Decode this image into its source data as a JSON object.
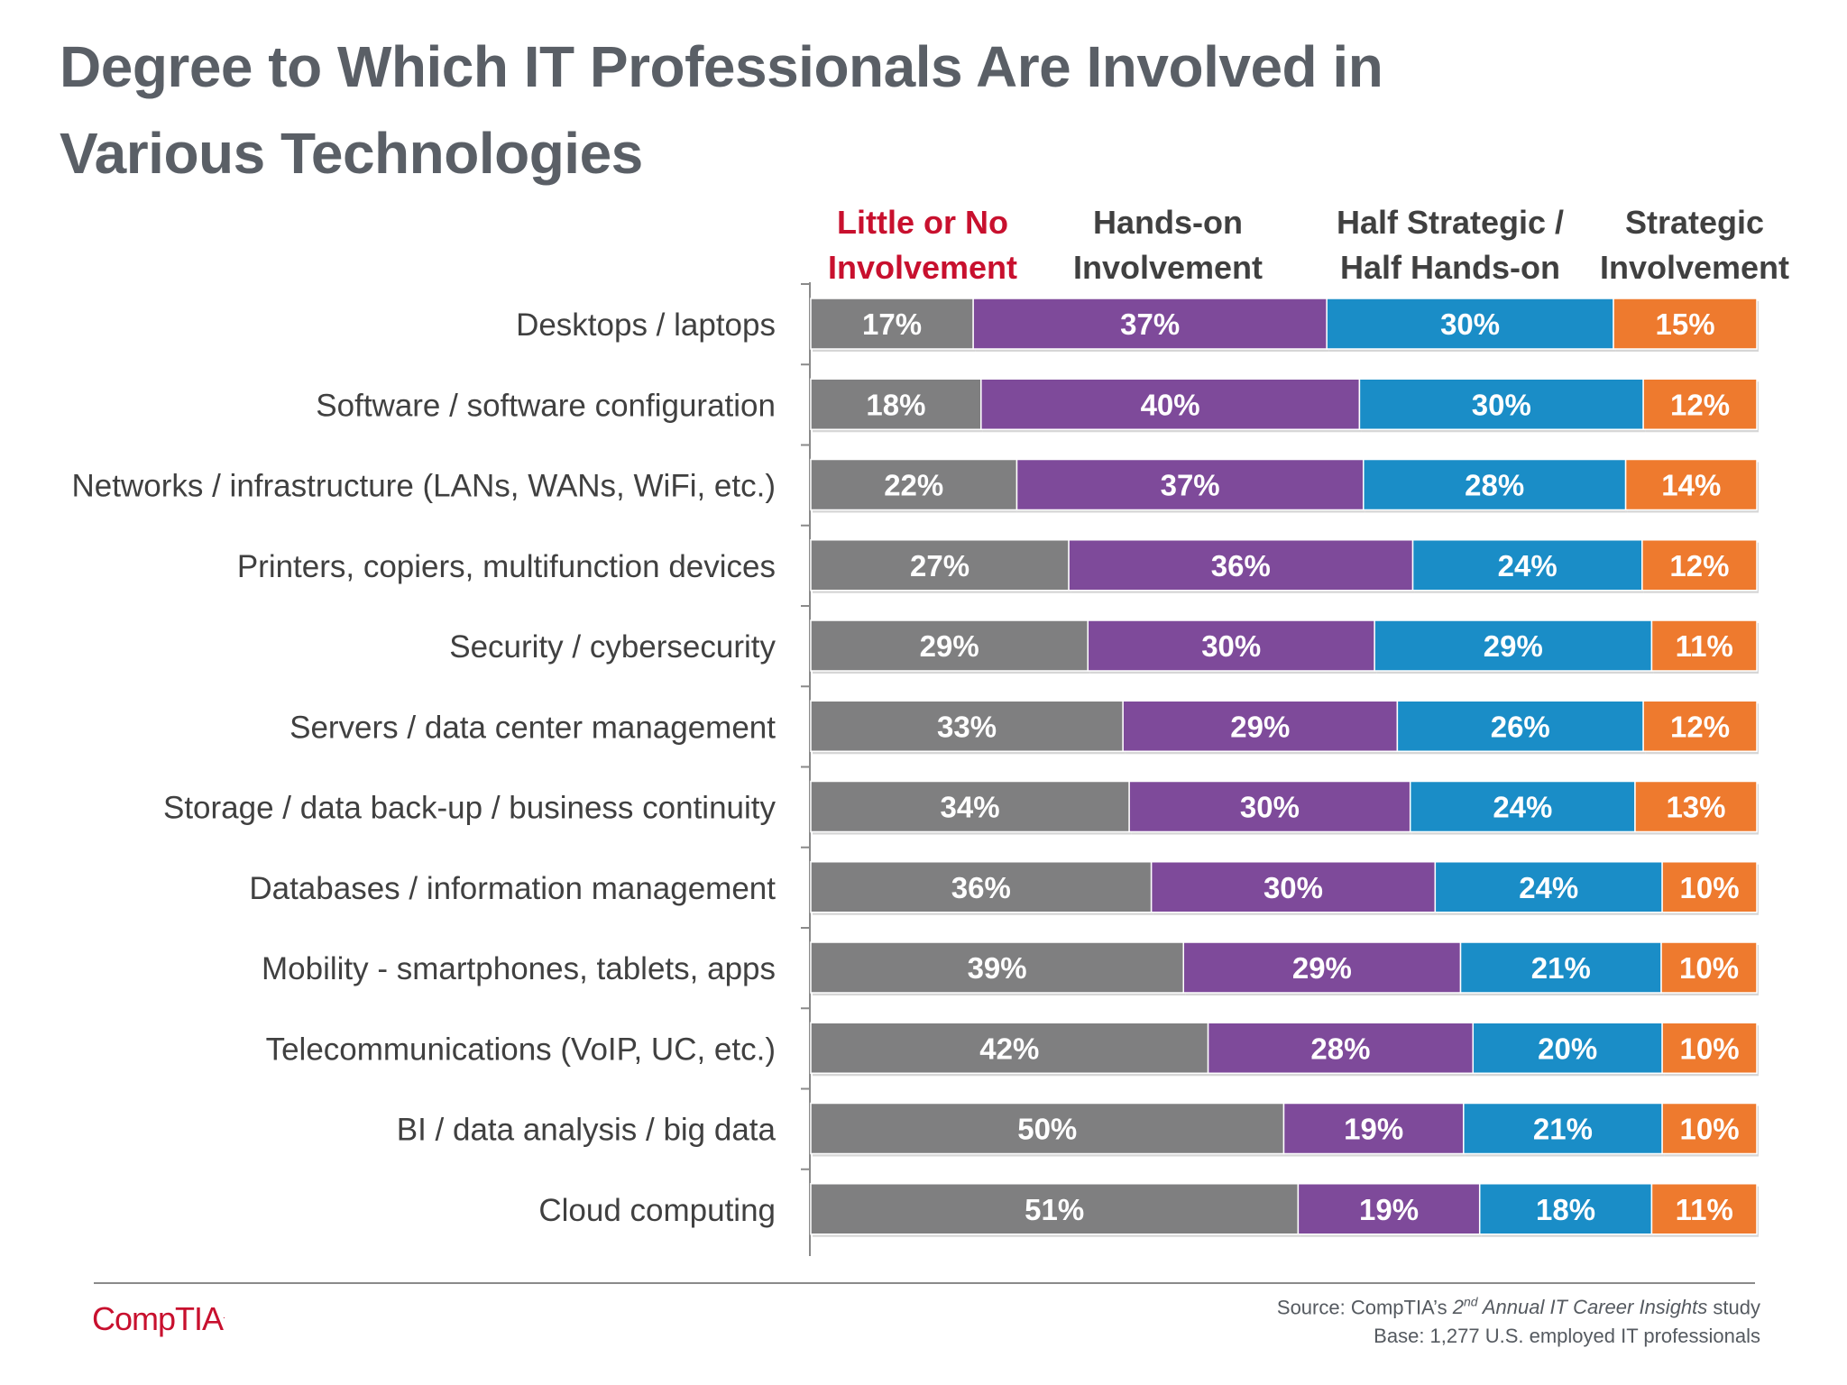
{
  "title_line1": "Degree to Which IT Professionals Are Involved in",
  "title_line2": "Various Technologies",
  "legend": {
    "s1_line1": "Little or No",
    "s1_line2": "Involvement",
    "s2_line1": "Hands-on",
    "s2_line2": "Involvement",
    "s3_line1": "Half Strategic /",
    "s3_line2": "Half Hands-on",
    "s4_line1": "Strategic",
    "s4_line2": "Involvement"
  },
  "footer": {
    "logo": "CompTIA",
    "source_prefix": "Source: CompTIA’s ",
    "source_italic_num": "2",
    "source_italic_sup": "nd",
    "source_italic_rest": " Annual IT Career Insights",
    "source_suffix": " study",
    "base": "Base: 1,277 U.S. employed IT professionals"
  },
  "chart_data": {
    "type": "bar",
    "orientation": "horizontal",
    "stacked": true,
    "categories": [
      "Desktops / laptops",
      "Software / software configuration",
      "Networks / infrastructure (LANs, WANs, WiFi, etc.)",
      "Printers, copiers, multifunction devices",
      "Security / cybersecurity",
      "Servers / data center management",
      "Storage / data back-up / business continuity",
      "Databases / information management",
      "Mobility - smartphones, tablets, apps",
      "Telecommunications (VoIP, UC, etc.)",
      "BI / data analysis / big data",
      "Cloud computing"
    ],
    "series": [
      {
        "name": "Little or No Involvement",
        "color": "#7f7f80",
        "values": [
          17,
          18,
          22,
          27,
          29,
          33,
          34,
          36,
          39,
          42,
          50,
          51
        ]
      },
      {
        "name": "Hands-on Involvement",
        "color": "#7e4a9a",
        "values": [
          37,
          40,
          37,
          36,
          30,
          29,
          30,
          30,
          29,
          28,
          19,
          19
        ]
      },
      {
        "name": "Half Strategic / Half Hands-on",
        "color": "#1a8dc7",
        "values": [
          30,
          30,
          28,
          24,
          29,
          26,
          24,
          24,
          21,
          20,
          21,
          18
        ]
      },
      {
        "name": "Strategic Involvement",
        "color": "#ee7a2e",
        "values": [
          15,
          12,
          14,
          12,
          11,
          12,
          13,
          10,
          10,
          10,
          10,
          11
        ]
      }
    ],
    "value_format": "percent",
    "legend_position": "top",
    "grid": false
  }
}
